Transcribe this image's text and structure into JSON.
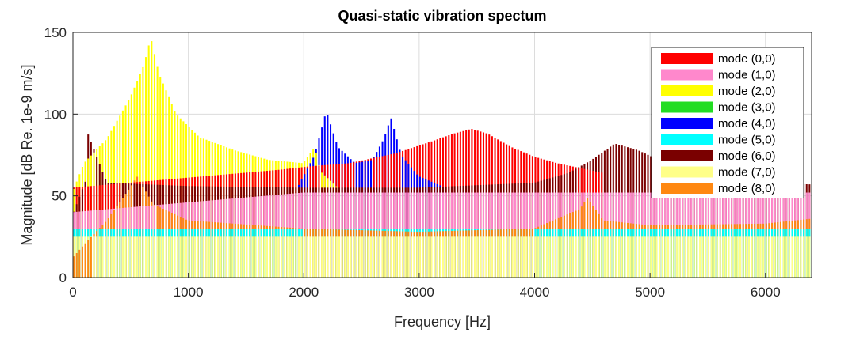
{
  "chart_data": {
    "type": "bar",
    "title": "Quasi-static vibration spectum",
    "xlabel": "Frequency [Hz]",
    "ylabel": "Magnitude [dB Re. 1e-9 m/s]",
    "xlim": [
      0,
      6400
    ],
    "ylim": [
      0,
      150
    ],
    "xticks": [
      0,
      1000,
      2000,
      3000,
      4000,
      5000,
      6000
    ],
    "yticks": [
      0,
      50,
      100,
      150
    ],
    "grid": true,
    "legend_position": "top-right",
    "stacking": "overlaid",
    "bin_width_hz": 25,
    "series": [
      {
        "name": "mode (0,0)",
        "color": "#ff0000",
        "envelope": [
          [
            0,
            55
          ],
          [
            1800,
            66
          ],
          [
            2050,
            68
          ],
          [
            2400,
            70
          ],
          [
            2800,
            76
          ],
          [
            3100,
            83
          ],
          [
            3300,
            88
          ],
          [
            3460,
            91
          ],
          [
            3600,
            88
          ],
          [
            3800,
            80
          ],
          [
            4000,
            74
          ],
          [
            4200,
            70
          ],
          [
            4400,
            67
          ],
          [
            4600,
            64
          ]
        ]
      },
      {
        "name": "mode (1,0)",
        "color": "#ff88cc",
        "envelope": [
          [
            0,
            40
          ],
          [
            2000,
            52
          ],
          [
            6400,
            52
          ]
        ]
      },
      {
        "name": "mode (2,0)",
        "color": "#ffff00",
        "envelope": [
          [
            0,
            52
          ],
          [
            100,
            70
          ],
          [
            300,
            85
          ],
          [
            500,
            110
          ],
          [
            620,
            130
          ],
          [
            680,
            147
          ],
          [
            750,
            125
          ],
          [
            900,
            100
          ],
          [
            1100,
            86
          ],
          [
            1400,
            78
          ],
          [
            1700,
            72
          ],
          [
            2000,
            70
          ],
          [
            2100,
            80
          ],
          [
            2150,
            65
          ],
          [
            2300,
            55
          ]
        ]
      },
      {
        "name": "mode (3,0)",
        "color": "#22dd22",
        "envelope": [
          [
            0,
            30
          ],
          [
            6400,
            30
          ]
        ]
      },
      {
        "name": "mode (4,0)",
        "color": "#0000ff",
        "envelope": [
          [
            1950,
            55
          ],
          [
            2100,
            75
          ],
          [
            2200,
            102
          ],
          [
            2300,
            80
          ],
          [
            2450,
            70
          ],
          [
            2600,
            72
          ],
          [
            2700,
            85
          ],
          [
            2760,
            98
          ],
          [
            2850,
            75
          ],
          [
            3000,
            62
          ],
          [
            3200,
            56
          ]
        ]
      },
      {
        "name": "mode (5,0)",
        "color": "#00ffff",
        "envelope": [
          [
            0,
            30
          ],
          [
            6400,
            30
          ]
        ]
      },
      {
        "name": "mode (6,0)",
        "color": "#7a0000",
        "envelope": [
          [
            0,
            38
          ],
          [
            120,
            60
          ],
          [
            135,
            88
          ],
          [
            300,
            58
          ],
          [
            1000,
            56
          ],
          [
            2000,
            55
          ],
          [
            3000,
            55
          ],
          [
            4000,
            58
          ],
          [
            4300,
            64
          ],
          [
            4500,
            72
          ],
          [
            4700,
            82
          ],
          [
            4900,
            78
          ],
          [
            5200,
            68
          ],
          [
            5600,
            62
          ],
          [
            6000,
            58
          ],
          [
            6400,
            57
          ]
        ]
      },
      {
        "name": "mode (7,0)",
        "color": "#ffff88",
        "envelope": [
          [
            0,
            25
          ],
          [
            6400,
            25
          ]
        ]
      },
      {
        "name": "mode (8,0)",
        "color": "#ff8811",
        "envelope": [
          [
            0,
            12
          ],
          [
            100,
            20
          ],
          [
            300,
            35
          ],
          [
            500,
            55
          ],
          [
            560,
            62
          ],
          [
            700,
            45
          ],
          [
            1000,
            35
          ],
          [
            2000,
            30
          ],
          [
            3000,
            28
          ],
          [
            4000,
            30
          ],
          [
            4400,
            42
          ],
          [
            4460,
            49
          ],
          [
            4600,
            35
          ],
          [
            5000,
            32
          ],
          [
            6000,
            33
          ],
          [
            6400,
            36
          ]
        ]
      }
    ]
  }
}
